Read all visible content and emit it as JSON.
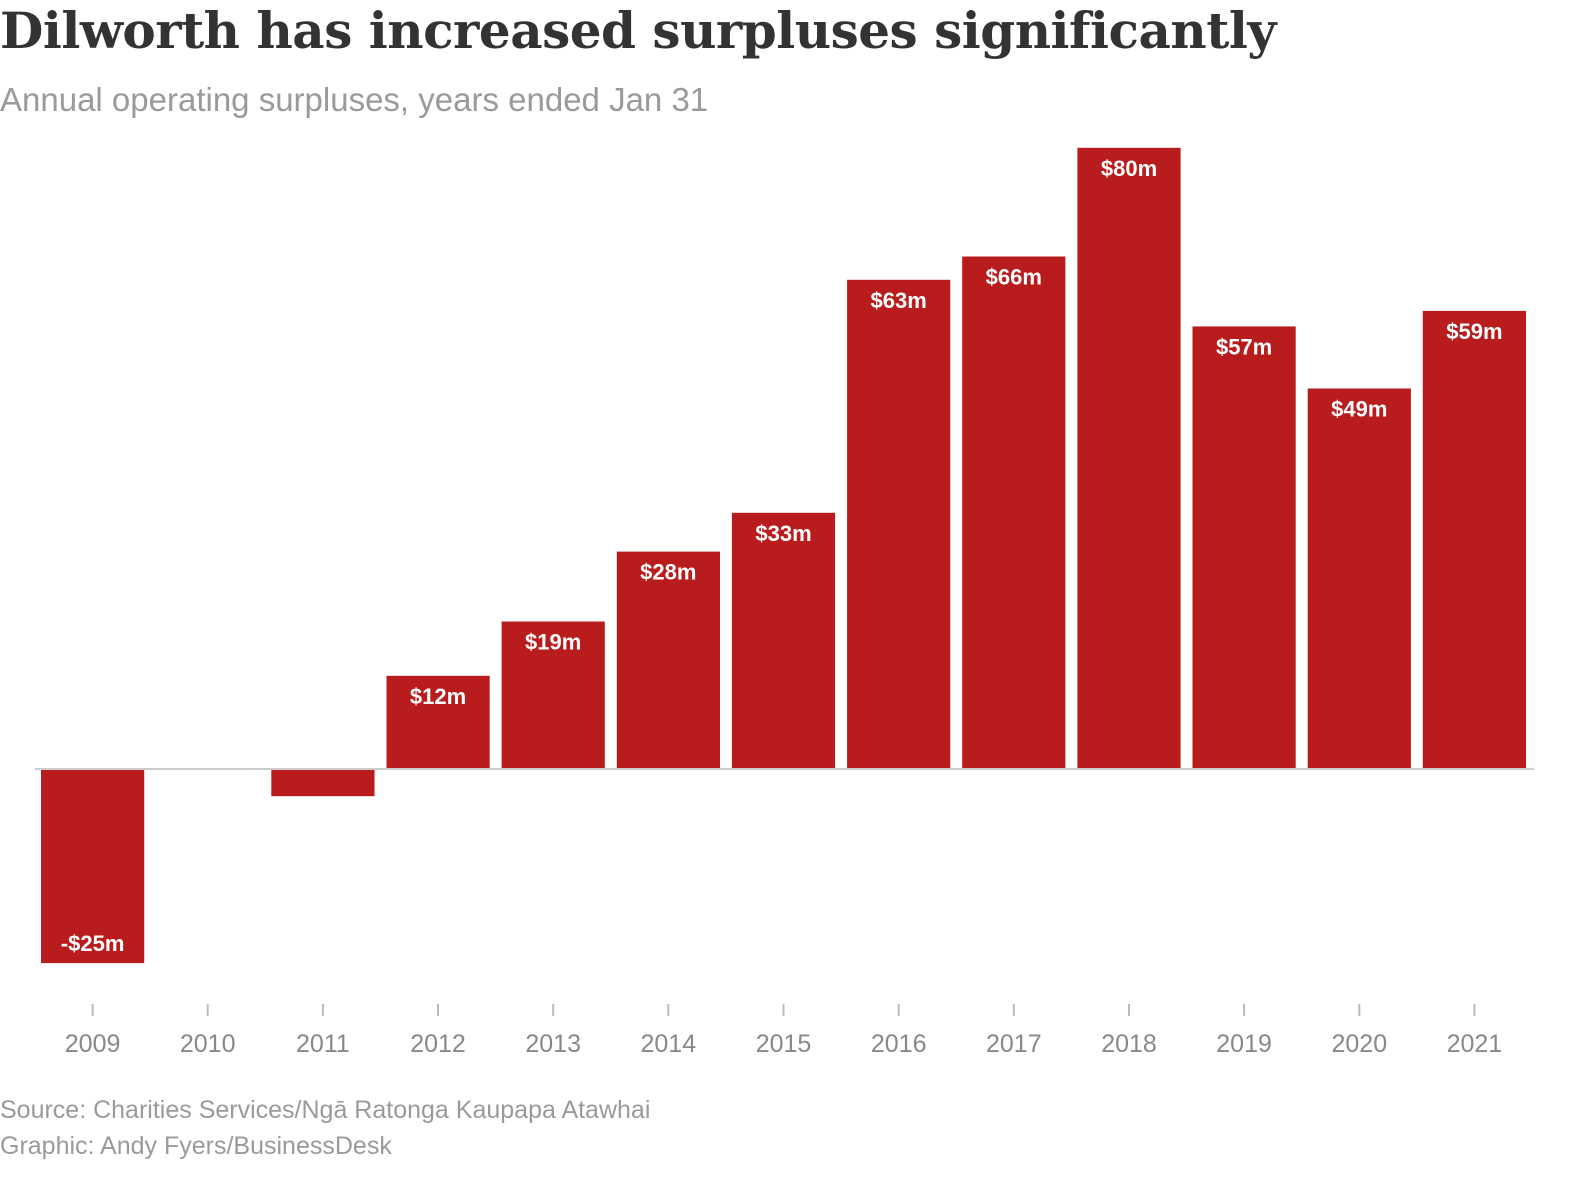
{
  "title": "Dilworth has increased surpluses significantly",
  "subtitle": "Annual operating surpluses, years ended Jan 31",
  "footer": {
    "source": "Source: Charities Services/Ngā Ratonga Kaupapa Atawhai",
    "graphic": "Graphic: Andy Fyers/BusinessDesk"
  },
  "colors": {
    "bar": "#b91c1c",
    "bar_label": "#ffffff",
    "baseline": "#cccccc",
    "tick": "#bbbbbb",
    "tick_label": "#888888"
  },
  "chart_data": {
    "type": "bar",
    "title": "Dilworth has increased surpluses significantly",
    "subtitle": "Annual operating surpluses, years ended Jan 31",
    "xlabel": "",
    "ylabel": "",
    "categories": [
      "2009",
      "2010",
      "2011",
      "2012",
      "2013",
      "2014",
      "2015",
      "2016",
      "2017",
      "2018",
      "2019",
      "2020",
      "2021"
    ],
    "values": [
      -25,
      0,
      -3.5,
      12,
      19,
      28,
      33,
      63,
      66,
      80,
      57,
      49,
      59
    ],
    "labels": [
      "-$25m",
      "",
      "",
      "$12m",
      "$19m",
      "$28m",
      "$33m",
      "$63m",
      "$66m",
      "$80m",
      "$57m",
      "$49m",
      "$59m"
    ],
    "unit": "$m",
    "ylim": [
      -29,
      80
    ],
    "grid": false,
    "legend": "none"
  }
}
